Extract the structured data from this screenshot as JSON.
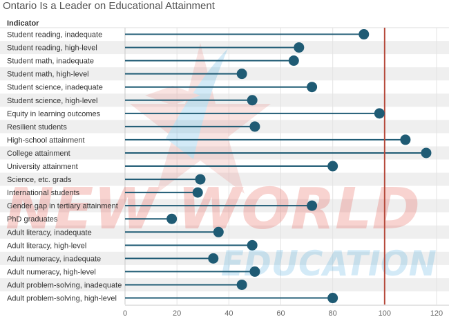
{
  "title": "Ontario Is a Leader on Educational Attainment",
  "watermark": {
    "line1": "NEW WORLD",
    "line2": "EDUCATION"
  },
  "colors": {
    "stem": "#1f5b74",
    "dot": "#1f5b74",
    "reference_line": "#b5483a",
    "band": "#efefef",
    "grid": "#e3e3e3"
  },
  "chart_data": {
    "type": "lollipop",
    "title": "Ontario Is a Leader on Educational Attainment",
    "column_header": "Indicator",
    "xlim": [
      0,
      120
    ],
    "xticks": [
      0,
      20,
      40,
      60,
      80,
      100,
      120
    ],
    "reference_value": 100,
    "categories": [
      "Student reading, inadequate",
      "Student reading, high-level",
      "Student math, inadequate",
      "Student math, high-level",
      "Student science, inadequate",
      "Student science, high-level",
      "Equity in learning outcomes",
      "Resilient students",
      "High-school attainment",
      "College attainment",
      "University attainment",
      "Science, etc. grads",
      "International students",
      "Gender gap in tertiary attainment",
      "PhD graduates",
      "Adult literacy, inadequate",
      "Adult literacy, high-level",
      "Adult numeracy, inadequate",
      "Adult numeracy, high-level",
      "Adult problem-solving, inadequate",
      "Adult problem-solving, high-level"
    ],
    "values": [
      92,
      67,
      65,
      45,
      72,
      49,
      98,
      50,
      108,
      116,
      80,
      29,
      28,
      72,
      18,
      36,
      49,
      34,
      50,
      45,
      80
    ]
  }
}
